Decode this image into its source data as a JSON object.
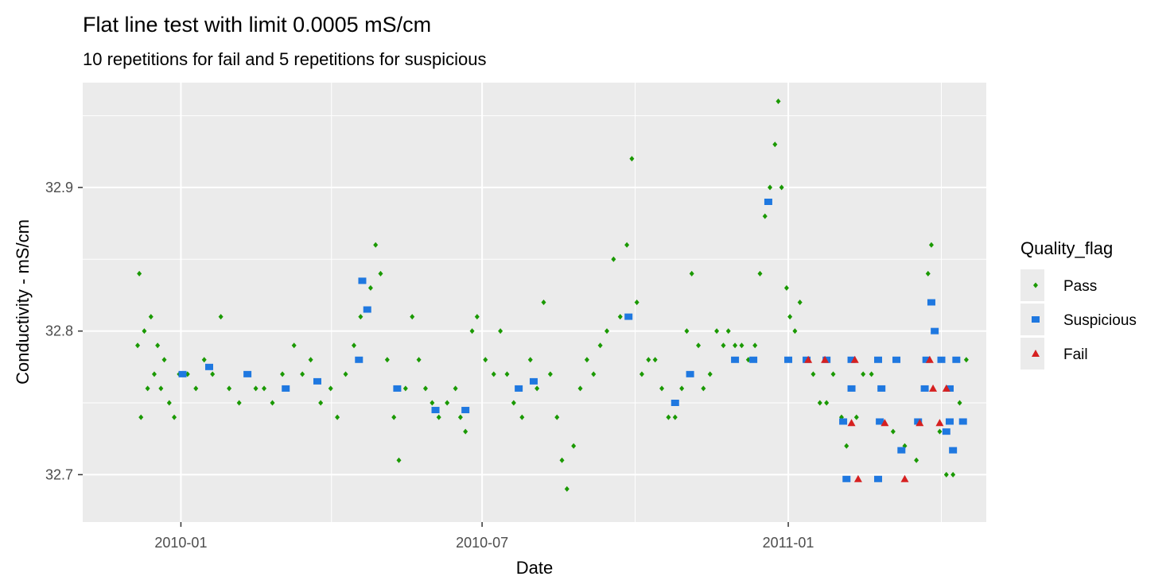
{
  "chart_data": {
    "type": "scatter",
    "title": "Flat line test with limit 0.0005 mS/cm",
    "subtitle": "10  repetitions for fail and  5  repetitions for suspicious",
    "xlabel": "Date",
    "ylabel": "Conductivity - mS/cm",
    "xlim": [
      "2009-11-03",
      "2011-04-30"
    ],
    "ylim": [
      32.667,
      32.973
    ],
    "x_ticks": [
      "2010-01-01",
      "2010-07-01",
      "2011-01-01"
    ],
    "x_tick_labels": [
      "2010-01",
      "2010-07",
      "2011-01"
    ],
    "y_ticks": [
      32.7,
      32.8,
      32.9
    ],
    "y_tick_labels": [
      "32.7",
      "32.8",
      "32.9"
    ],
    "grid": true,
    "legend": {
      "title": "Quality_flag",
      "position": "right",
      "entries": [
        {
          "name": "Pass",
          "color": "#1a9900",
          "shape": "diamond"
        },
        {
          "name": "Suspicious",
          "color": "#1f78e0",
          "shape": "square"
        },
        {
          "name": "Fail",
          "color": "#d62020",
          "shape": "triangle"
        }
      ]
    },
    "series": [
      {
        "name": "Pass",
        "color": "#1a9900",
        "points": [
          [
            "2009-12-06",
            32.79
          ],
          [
            "2009-12-07",
            32.84
          ],
          [
            "2009-12-08",
            32.74
          ],
          [
            "2009-12-10",
            32.8
          ],
          [
            "2009-12-12",
            32.76
          ],
          [
            "2009-12-14",
            32.81
          ],
          [
            "2009-12-16",
            32.77
          ],
          [
            "2009-12-18",
            32.79
          ],
          [
            "2009-12-20",
            32.76
          ],
          [
            "2009-12-22",
            32.78
          ],
          [
            "2009-12-25",
            32.75
          ],
          [
            "2009-12-28",
            32.74
          ],
          [
            "2009-12-31",
            32.77
          ],
          [
            "2010-01-05",
            32.77
          ],
          [
            "2010-01-10",
            32.76
          ],
          [
            "2010-01-15",
            32.78
          ],
          [
            "2010-01-20",
            32.77
          ],
          [
            "2010-01-25",
            32.81
          ],
          [
            "2010-01-30",
            32.76
          ],
          [
            "2010-02-05",
            32.75
          ],
          [
            "2010-02-10",
            32.77
          ],
          [
            "2010-02-15",
            32.76
          ],
          [
            "2010-02-20",
            32.76
          ],
          [
            "2010-02-25",
            32.75
          ],
          [
            "2010-03-03",
            32.77
          ],
          [
            "2010-03-10",
            32.79
          ],
          [
            "2010-03-15",
            32.77
          ],
          [
            "2010-03-20",
            32.78
          ],
          [
            "2010-03-26",
            32.75
          ],
          [
            "2010-04-01",
            32.76
          ],
          [
            "2010-04-05",
            32.74
          ],
          [
            "2010-04-10",
            32.77
          ],
          [
            "2010-04-15",
            32.79
          ],
          [
            "2010-04-19",
            32.81
          ],
          [
            "2010-04-25",
            32.83
          ],
          [
            "2010-04-28",
            32.86
          ],
          [
            "2010-05-01",
            32.84
          ],
          [
            "2010-05-05",
            32.78
          ],
          [
            "2010-05-09",
            32.74
          ],
          [
            "2010-05-12",
            32.71
          ],
          [
            "2010-05-16",
            32.76
          ],
          [
            "2010-05-20",
            32.81
          ],
          [
            "2010-05-24",
            32.78
          ],
          [
            "2010-05-28",
            32.76
          ],
          [
            "2010-06-01",
            32.75
          ],
          [
            "2010-06-05",
            32.74
          ],
          [
            "2010-06-10",
            32.75
          ],
          [
            "2010-06-15",
            32.76
          ],
          [
            "2010-06-18",
            32.74
          ],
          [
            "2010-06-21",
            32.73
          ],
          [
            "2010-06-25",
            32.8
          ],
          [
            "2010-06-28",
            32.81
          ],
          [
            "2010-07-03",
            32.78
          ],
          [
            "2010-07-08",
            32.77
          ],
          [
            "2010-07-12",
            32.8
          ],
          [
            "2010-07-16",
            32.77
          ],
          [
            "2010-07-20",
            32.75
          ],
          [
            "2010-07-25",
            32.74
          ],
          [
            "2010-07-30",
            32.78
          ],
          [
            "2010-08-03",
            32.76
          ],
          [
            "2010-08-07",
            32.82
          ],
          [
            "2010-08-11",
            32.77
          ],
          [
            "2010-08-15",
            32.74
          ],
          [
            "2010-08-18",
            32.71
          ],
          [
            "2010-08-21",
            32.69
          ],
          [
            "2010-08-25",
            32.72
          ],
          [
            "2010-08-29",
            32.76
          ],
          [
            "2010-09-02",
            32.78
          ],
          [
            "2010-09-06",
            32.77
          ],
          [
            "2010-09-10",
            32.79
          ],
          [
            "2010-09-14",
            32.8
          ],
          [
            "2010-09-18",
            32.85
          ],
          [
            "2010-09-22",
            32.81
          ],
          [
            "2010-09-26",
            32.86
          ],
          [
            "2010-09-29",
            32.92
          ],
          [
            "2010-10-02",
            32.82
          ],
          [
            "2010-10-05",
            32.77
          ],
          [
            "2010-10-09",
            32.78
          ],
          [
            "2010-10-13",
            32.78
          ],
          [
            "2010-10-17",
            32.76
          ],
          [
            "2010-10-21",
            32.74
          ],
          [
            "2010-10-25",
            32.74
          ],
          [
            "2010-10-29",
            32.76
          ],
          [
            "2010-11-01",
            32.8
          ],
          [
            "2010-11-04",
            32.84
          ],
          [
            "2010-11-08",
            32.79
          ],
          [
            "2010-11-11",
            32.76
          ],
          [
            "2010-11-15",
            32.77
          ],
          [
            "2010-11-19",
            32.8
          ],
          [
            "2010-11-23",
            32.79
          ],
          [
            "2010-11-26",
            32.8
          ],
          [
            "2010-11-30",
            32.79
          ],
          [
            "2010-12-04",
            32.79
          ],
          [
            "2010-12-08",
            32.78
          ],
          [
            "2010-12-12",
            32.79
          ],
          [
            "2010-12-15",
            32.84
          ],
          [
            "2010-12-18",
            32.88
          ],
          [
            "2010-12-21",
            32.9
          ],
          [
            "2010-12-24",
            32.93
          ],
          [
            "2010-12-26",
            32.96
          ],
          [
            "2010-12-28",
            32.9
          ],
          [
            "2010-12-31",
            32.83
          ],
          [
            "2011-01-02",
            32.81
          ],
          [
            "2011-01-05",
            32.8
          ],
          [
            "2011-01-08",
            32.82
          ],
          [
            "2011-01-16",
            32.77
          ],
          [
            "2011-01-20",
            32.75
          ],
          [
            "2011-01-24",
            32.75
          ],
          [
            "2011-01-28",
            32.77
          ],
          [
            "2011-02-02",
            32.74
          ],
          [
            "2011-02-05",
            32.72
          ],
          [
            "2011-02-08",
            32.76
          ],
          [
            "2011-02-11",
            32.74
          ],
          [
            "2011-02-15",
            32.77
          ],
          [
            "2011-02-20",
            32.77
          ],
          [
            "2011-02-25",
            32.76
          ],
          [
            "2011-03-05",
            32.73
          ],
          [
            "2011-03-12",
            32.72
          ],
          [
            "2011-03-19",
            32.71
          ],
          [
            "2011-03-26",
            32.84
          ],
          [
            "2011-03-28",
            32.86
          ],
          [
            "2011-04-02",
            32.73
          ],
          [
            "2011-04-06",
            32.7
          ],
          [
            "2011-04-10",
            32.7
          ],
          [
            "2011-04-14",
            32.75
          ],
          [
            "2011-04-18",
            32.78
          ]
        ]
      },
      {
        "name": "Suspicious",
        "color": "#1f78e0",
        "points": [
          [
            "2010-01-02",
            32.77
          ],
          [
            "2010-01-18",
            32.775
          ],
          [
            "2010-02-10",
            32.77
          ],
          [
            "2010-03-05",
            32.76
          ],
          [
            "2010-03-24",
            32.765
          ],
          [
            "2010-04-20",
            32.835
          ],
          [
            "2010-04-23",
            32.815
          ],
          [
            "2010-04-18",
            32.78
          ],
          [
            "2010-05-11",
            32.76
          ],
          [
            "2010-06-03",
            32.745
          ],
          [
            "2010-06-21",
            32.745
          ],
          [
            "2010-07-23",
            32.76
          ],
          [
            "2010-08-01",
            32.765
          ],
          [
            "2010-09-27",
            32.81
          ],
          [
            "2010-10-25",
            32.75
          ],
          [
            "2010-11-03",
            32.77
          ],
          [
            "2010-11-30",
            32.78
          ],
          [
            "2010-12-11",
            32.78
          ],
          [
            "2010-12-20",
            32.89
          ],
          [
            "2011-01-01",
            32.78
          ],
          [
            "2011-01-12",
            32.78
          ],
          [
            "2011-01-24",
            32.78
          ],
          [
            "2011-02-08",
            32.78
          ],
          [
            "2011-02-24",
            32.78
          ],
          [
            "2011-03-07",
            32.78
          ],
          [
            "2011-03-25",
            32.78
          ],
          [
            "2011-04-03",
            32.78
          ],
          [
            "2011-04-12",
            32.78
          ],
          [
            "2011-02-08",
            32.76
          ],
          [
            "2011-02-26",
            32.76
          ],
          [
            "2011-03-24",
            32.76
          ],
          [
            "2011-04-08",
            32.76
          ],
          [
            "2011-02-03",
            32.737
          ],
          [
            "2011-02-25",
            32.737
          ],
          [
            "2011-03-20",
            32.737
          ],
          [
            "2011-04-08",
            32.737
          ],
          [
            "2011-04-16",
            32.737
          ],
          [
            "2011-03-10",
            32.717
          ],
          [
            "2011-04-10",
            32.717
          ],
          [
            "2011-03-28",
            32.82
          ],
          [
            "2011-03-30",
            32.8
          ],
          [
            "2011-04-06",
            32.73
          ],
          [
            "2011-02-05",
            32.697
          ],
          [
            "2011-02-24",
            32.697
          ]
        ]
      },
      {
        "name": "Fail",
        "color": "#d62020",
        "points": [
          [
            "2011-01-13",
            32.78
          ],
          [
            "2011-01-23",
            32.78
          ],
          [
            "2011-02-10",
            32.78
          ],
          [
            "2011-03-27",
            32.78
          ],
          [
            "2011-03-29",
            32.76
          ],
          [
            "2011-04-06",
            32.76
          ],
          [
            "2011-02-08",
            32.736
          ],
          [
            "2011-02-28",
            32.736
          ],
          [
            "2011-03-21",
            32.736
          ],
          [
            "2011-04-02",
            32.736
          ],
          [
            "2011-02-12",
            32.697
          ],
          [
            "2011-03-12",
            32.697
          ]
        ]
      }
    ]
  }
}
